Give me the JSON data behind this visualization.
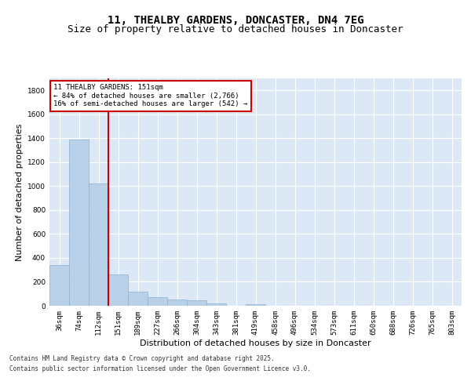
{
  "title_line1": "11, THEALBY GARDENS, DONCASTER, DN4 7EG",
  "title_line2": "Size of property relative to detached houses in Doncaster",
  "xlabel": "Distribution of detached houses by size in Doncaster",
  "ylabel": "Number of detached properties",
  "bins": [
    "36sqm",
    "74sqm",
    "112sqm",
    "151sqm",
    "189sqm",
    "227sqm",
    "266sqm",
    "304sqm",
    "343sqm",
    "381sqm",
    "419sqm",
    "458sqm",
    "496sqm",
    "534sqm",
    "573sqm",
    "611sqm",
    "650sqm",
    "688sqm",
    "726sqm",
    "765sqm",
    "803sqm"
  ],
  "values": [
    340,
    1390,
    1020,
    265,
    115,
    70,
    55,
    45,
    20,
    0,
    10,
    0,
    0,
    0,
    0,
    0,
    0,
    0,
    0,
    0,
    0
  ],
  "bar_color": "#b8d0e8",
  "bar_edgecolor": "#8ab4d4",
  "vline_color": "#cc0000",
  "annotation_text": "11 THEALBY GARDENS: 151sqm\n← 84% of detached houses are smaller (2,766)\n16% of semi-detached houses are larger (542) →",
  "annotation_box_color": "#cc0000",
  "ylim": [
    0,
    1900
  ],
  "yticks": [
    0,
    200,
    400,
    600,
    800,
    1000,
    1200,
    1400,
    1600,
    1800
  ],
  "bg_color": "#dce8f5",
  "footer_line1": "Contains HM Land Registry data © Crown copyright and database right 2025.",
  "footer_line2": "Contains public sector information licensed under the Open Government Licence v3.0.",
  "title_fontsize": 10,
  "subtitle_fontsize": 9,
  "tick_fontsize": 6.5,
  "label_fontsize": 8,
  "annotation_fontsize": 6.5
}
